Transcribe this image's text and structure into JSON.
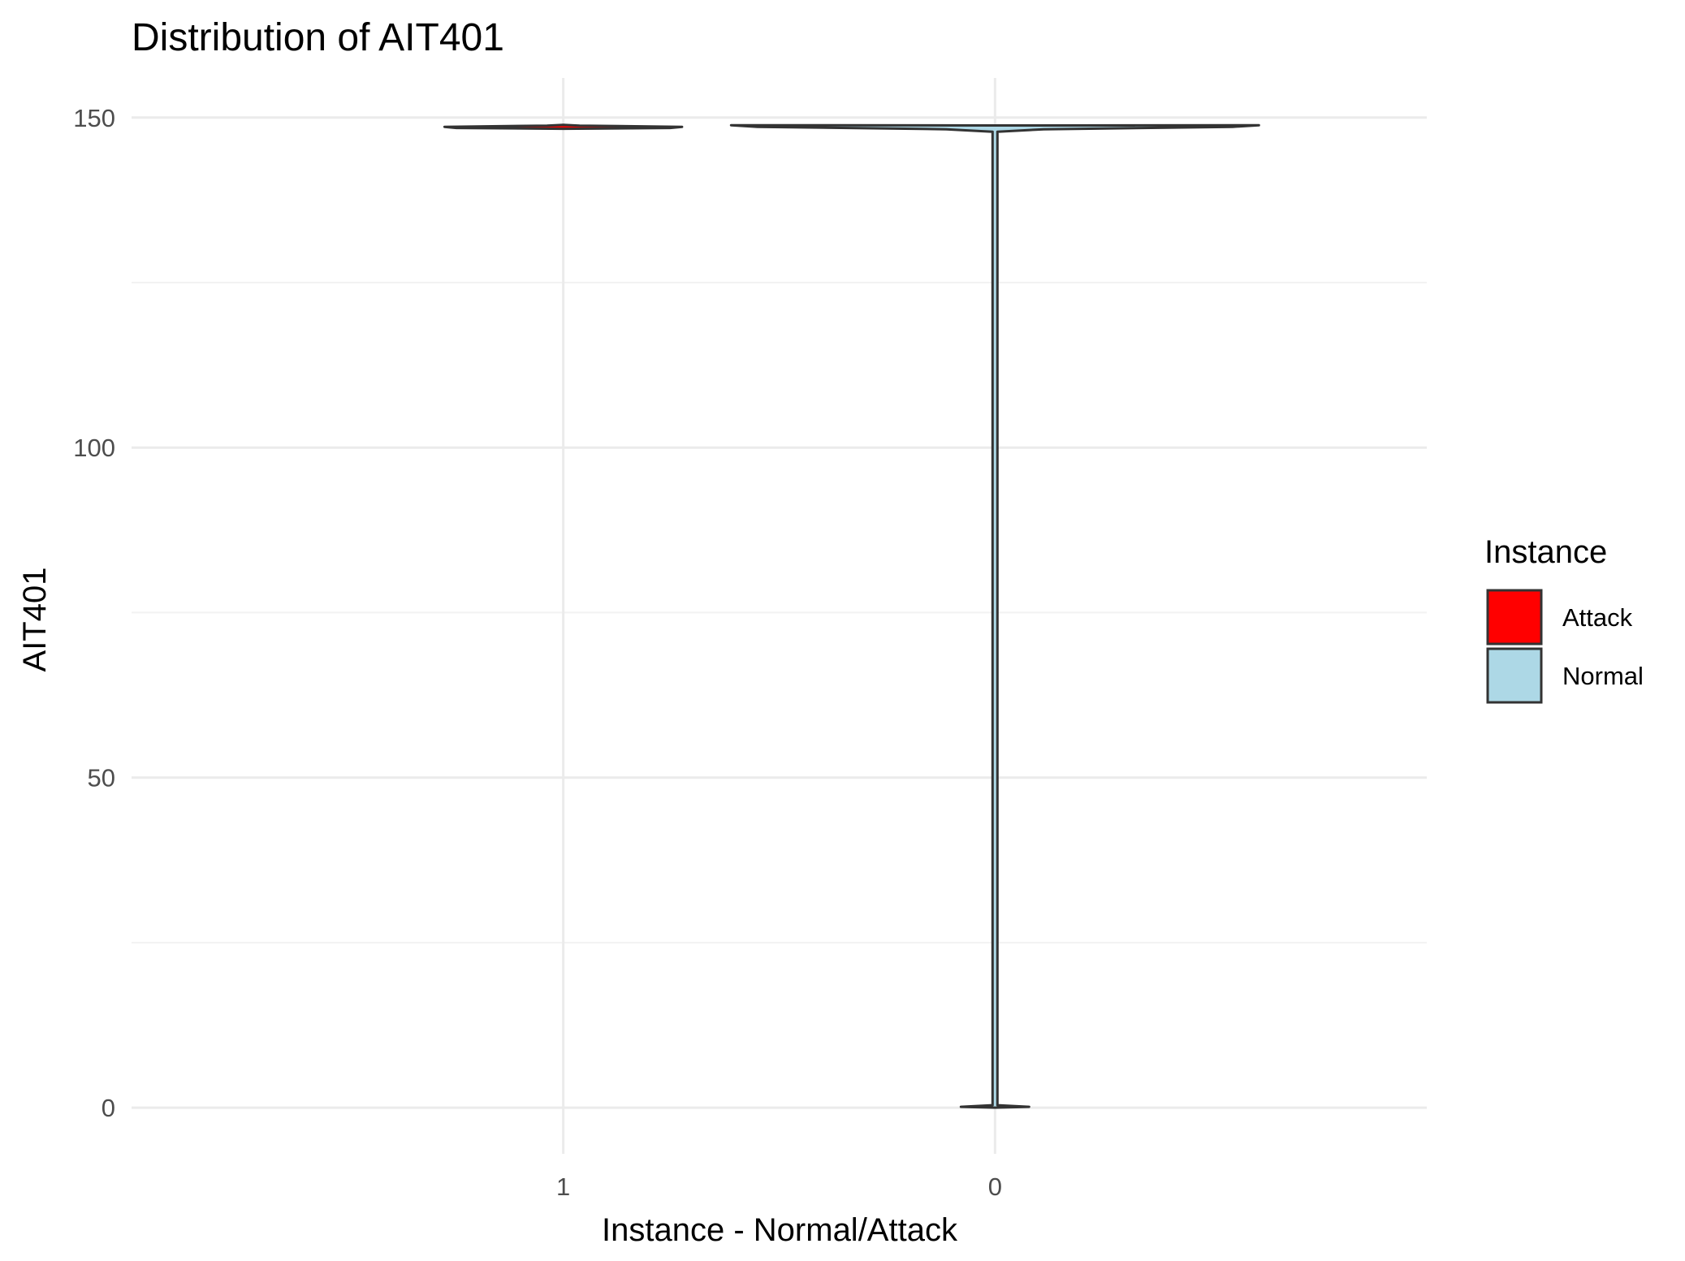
{
  "chart_data": {
    "type": "violin",
    "title": "Distribution of AIT401",
    "xlabel": "Instance - Normal/Attack",
    "ylabel": "AIT401",
    "categories": [
      "1",
      "0"
    ],
    "ylim": [
      -7,
      156
    ],
    "yticks": [
      0,
      50,
      100,
      150
    ],
    "grid": true,
    "series": [
      {
        "category": "1",
        "group": "Attack",
        "min": 148.3,
        "max": 148.9,
        "mode": 148.6,
        "fill": "#ff0000"
      },
      {
        "category": "0",
        "group": "Normal",
        "min": 0,
        "max": 148.8,
        "mode": 148.6,
        "fill": "#add8e6"
      }
    ],
    "legend": {
      "title": "Instance",
      "position": "right",
      "items": [
        {
          "label": "Attack",
          "color": "#ff0000"
        },
        {
          "label": "Normal",
          "color": "#add8e6"
        }
      ]
    },
    "colors": {
      "outline": "#333333",
      "grid_major": "#ebebeb",
      "grid_minor": "#f2f2f2"
    }
  }
}
